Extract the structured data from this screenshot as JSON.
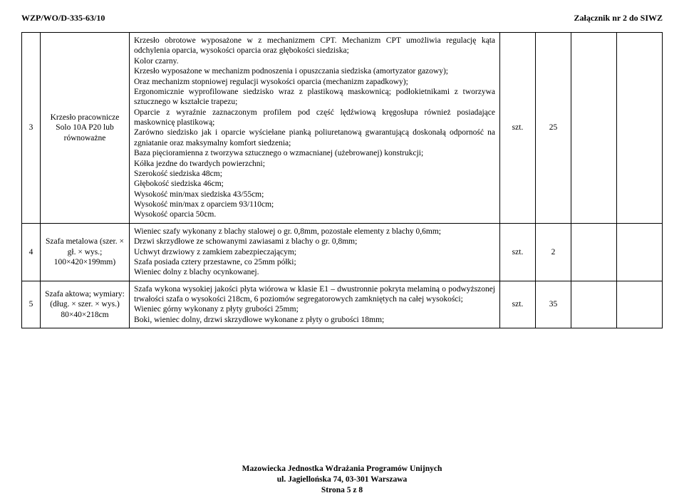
{
  "header": {
    "left": "WZP/WO/D-335-63/10",
    "right": "Załącznik nr 2 do SIWZ"
  },
  "rows": [
    {
      "idx": "3",
      "name": "Krzesło pracownicze Solo 10A P20 lub równoważne",
      "desc": "Krzesło obrotowe wyposażone w z mechanizmem CPT. Mechanizm CPT umożliwia regulację kąta odchylenia oparcia, wysokości oparcia oraz głębokości siedziska;\nKolor czarny.\nKrzesło wyposażone w mechanizm podnoszenia i opuszczania siedziska (amortyzator gazowy);\nOraz mechanizm stopniowej regulacji wysokości oparcia (mechanizm zapadkowy);\nErgonomicznie wyprofilowane siedzisko wraz z plastikową maskownicą; podłokietnikami z tworzywa sztucznego w kształcie trapezu;\nOparcie z wyraźnie zaznaczonym profilem pod część lędźwiową kręgosłupa również posiadające maskownicę plastikową;\nZarówno siedzisko jak i oparcie wyściełane pianką poliuretanową gwarantującą doskonałą odporność na zgniatanie oraz maksymalny komfort siedzenia;\nBaza pięcioramienna z tworzywa sztucznego o wzmacnianej (użebrowanej) konstrukcji;\nKółka jezdne do twardych powierzchni;\nSzerokość siedziska 48cm;\nGłębokość siedziska 46cm;\nWysokość min/max siedziska 43/55cm;\nWysokość min/max z oparciem 93/110cm;\nWysokość oparcia 50cm.",
      "unit": "szt.",
      "qty": "25"
    },
    {
      "idx": "4",
      "name": "Szafa metalowa (szer. × gł. × wys.; 100×420×199mm)",
      "desc": "Wieniec szafy wykonany z blachy stalowej o gr. 0,8mm, pozostałe elementy z blachy 0,6mm;\nDrzwi skrzydłowe ze schowanymi zawiasami z blachy o gr. 0,8mm;\nUchwyt drzwiowy z zamkiem zabezpieczającym;\nSzafa posiada cztery przestawne, co 25mm półki;\nWieniec dolny z blachy ocynkowanej.",
      "unit": "szt.",
      "qty": "2"
    },
    {
      "idx": "5",
      "name": "Szafa aktowa; wymiary:\n(dług. × szer. × wys.) 80×40×218cm",
      "desc": "Szafa wykona wysokiej jakości płyta wiórowa w klasie E1 – dwustronnie pokryta melaminą o podwyższonej trwałości szafa o wysokości 218cm, 6 poziomów segregatorowych zamkniętych na całej wysokości;\nWieniec górny wykonany z płyty grubości 25mm;\nBoki, wieniec dolny, drzwi skrzydłowe wykonane z płyty o grubości 18mm;",
      "unit": "szt.",
      "qty": "35"
    }
  ],
  "footer": {
    "l1": "Mazowiecka Jednostka Wdrażania Programów Unijnych",
    "l2": "ul. Jagiellońska 74, 03-301 Warszawa",
    "l3": "Strona 5 z 8"
  }
}
